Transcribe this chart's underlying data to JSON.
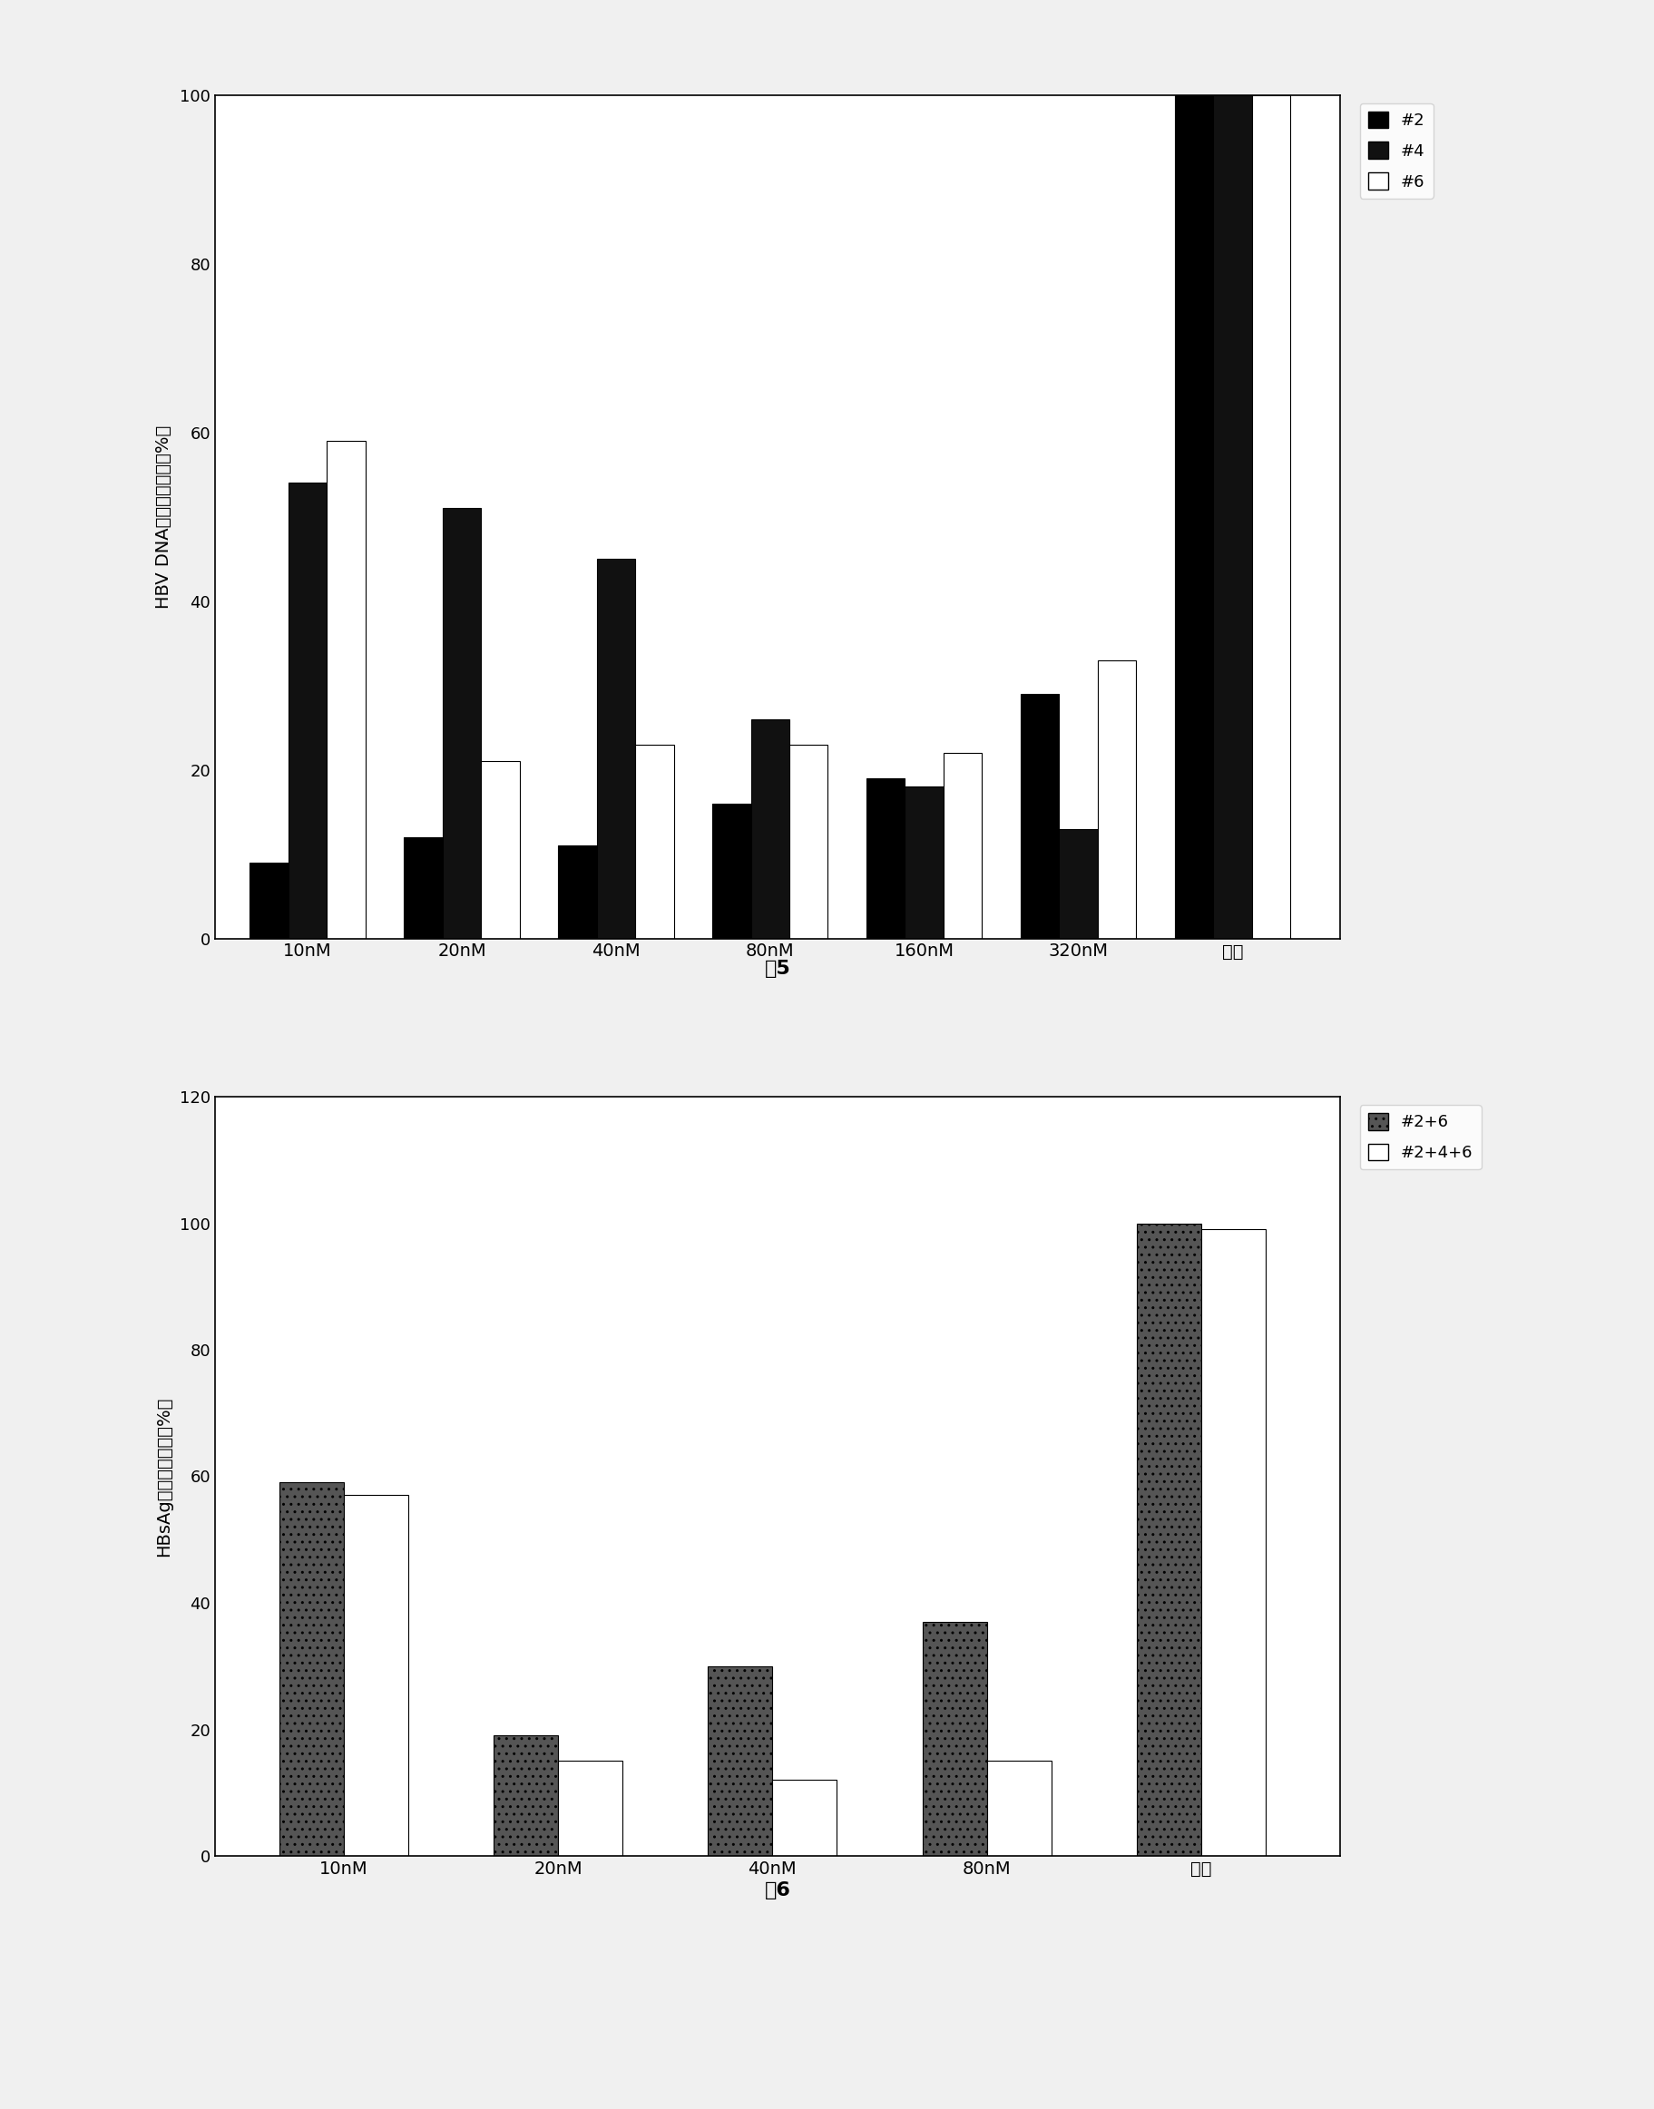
{
  "fig5": {
    "categories": [
      "10nM",
      "20nM",
      "40nM",
      "80nM",
      "160nM",
      "320nM",
      "对照"
    ],
    "series": {
      "#2": [
        9,
        12,
        11,
        16,
        19,
        29,
        100
      ],
      "#4": [
        54,
        51,
        45,
        26,
        18,
        13,
        100
      ],
      "#6": [
        59,
        21,
        23,
        23,
        22,
        33,
        100
      ]
    },
    "ylabel": "HBV DNA相对表达水平（%）",
    "xlabel_fig": "图5",
    "ylim": [
      0,
      100
    ],
    "yticks": [
      0,
      20,
      40,
      60,
      80,
      100
    ],
    "legend_labels": [
      "#2",
      "#4",
      "#6"
    ]
  },
  "fig6": {
    "categories": [
      "10nM",
      "20nM",
      "40nM",
      "80nM",
      "对照"
    ],
    "series": {
      "#2+6": [
        59,
        19,
        30,
        37,
        100
      ],
      "#2+4+6": [
        57,
        15,
        12,
        15,
        99
      ]
    },
    "ylabel": "HBsAg相对表达水平（%）",
    "xlabel_fig": "图6",
    "ylim": [
      0,
      120
    ],
    "yticks": [
      0,
      20,
      40,
      60,
      80,
      100,
      120
    ],
    "legend_labels": [
      "#2+6",
      "#2+4+6"
    ]
  },
  "bg_color": "#f0f0f0"
}
